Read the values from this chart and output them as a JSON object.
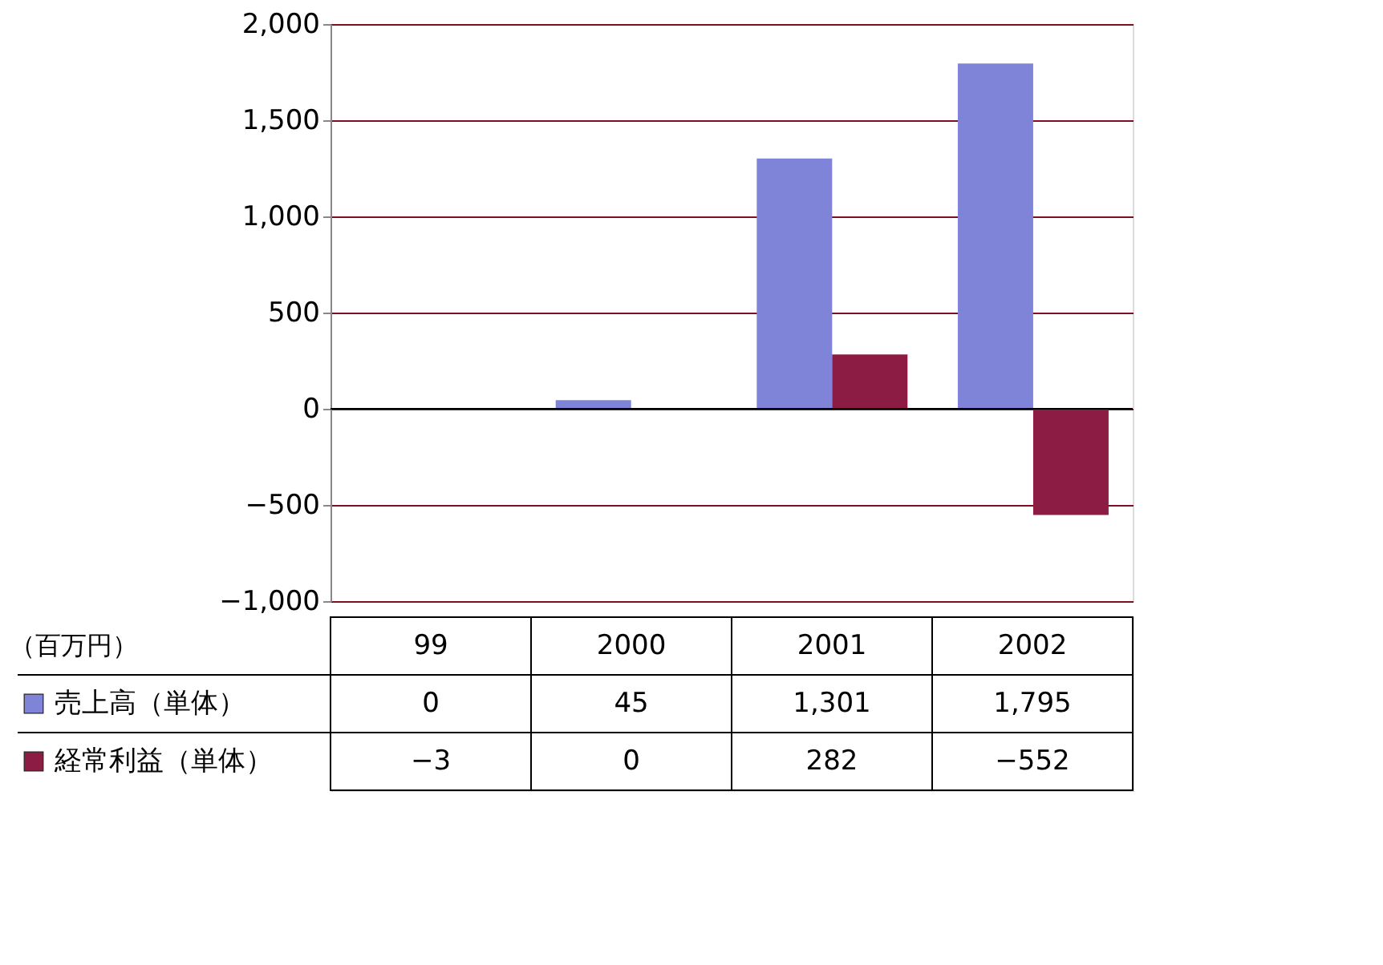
{
  "chart_data": {
    "type": "bar",
    "categories": [
      "99",
      "2000",
      "2001",
      "2002"
    ],
    "series": [
      {
        "name": "売上高（単体）",
        "color": "#7f84d8",
        "values": [
          0,
          45,
          1301,
          1795
        ],
        "value_labels": [
          "0",
          "45",
          "1,301",
          "1,795"
        ]
      },
      {
        "name": "経常利益（単体）",
        "color": "#8c1c44",
        "values": [
          -3,
          0,
          282,
          -552
        ],
        "value_labels": [
          "−3",
          "0",
          "282",
          "−552"
        ]
      }
    ],
    "ylim": [
      -1000,
      2000
    ],
    "yticks": [
      {
        "value": -1000,
        "label": "−1,000"
      },
      {
        "value": -500,
        "label": "−500"
      },
      0,
      500,
      {
        "value": 1000,
        "label": "1,000"
      },
      {
        "value": 1500,
        "label": "1,500"
      },
      {
        "value": 2000,
        "label": "2,000"
      }
    ],
    "grid": "y",
    "legend": "bottom left",
    "annotations": [
      "（百万円）"
    ]
  }
}
